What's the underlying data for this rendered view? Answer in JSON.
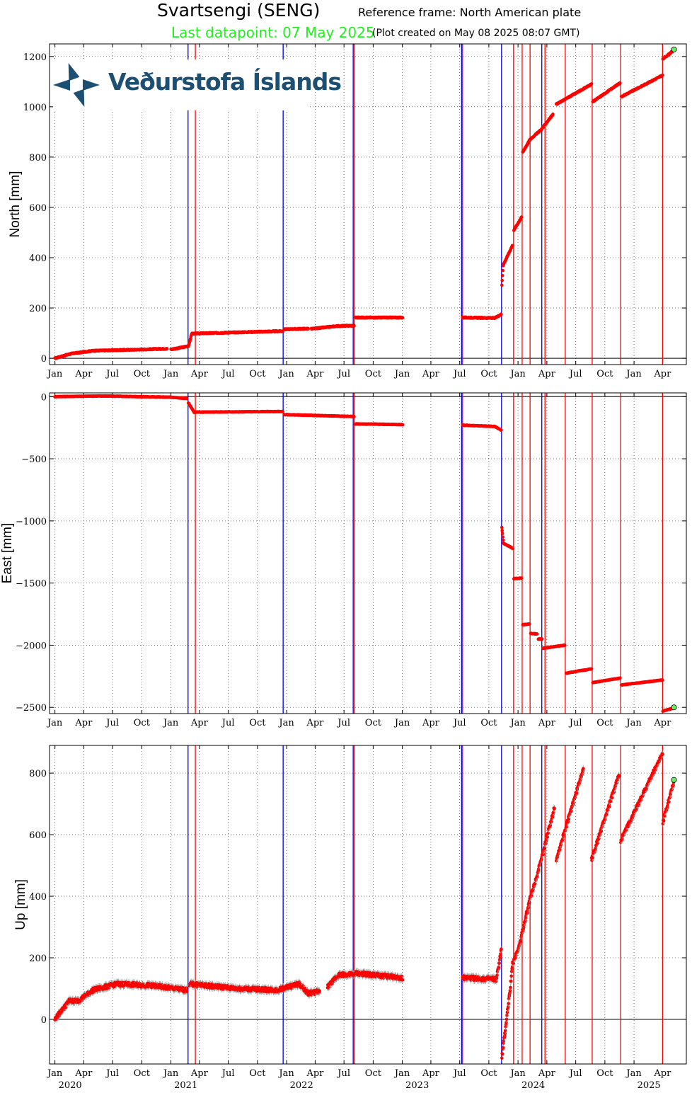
{
  "header": {
    "title": "Svartsengi (SENG)",
    "reference": "Reference frame: North American plate",
    "last_datapoint": "Last datapoint: 07 May 2025",
    "created": "(Plot created on May 08 2025 08:07 GMT)"
  },
  "logo": {
    "text": "Veðurstofa Íslands"
  },
  "colors": {
    "data": "#ff0000",
    "event_blue": "#0000dd",
    "event_red": "#ff0000",
    "last_point": "#66ee66"
  },
  "chart_data": [
    {
      "type": "scatter",
      "ylabel": "North [mm]",
      "xlim": [
        "2019-12-15",
        "2025-06-15"
      ],
      "ylim": [
        -25,
        1250
      ],
      "y_ticks": [
        0,
        200,
        400,
        600,
        800,
        1000,
        1200
      ],
      "y_tick_labels": [
        "0",
        "200",
        "400",
        "600",
        "800",
        "1000",
        "1200"
      ],
      "segments": [
        [
          [
            "2020-01-01",
            0
          ],
          [
            "2020-02-20",
            18
          ],
          [
            "2020-05-01",
            30
          ],
          [
            "2020-10-01",
            35
          ],
          [
            "2020-12-20",
            38
          ]
        ],
        [
          [
            "2021-01-01",
            35
          ],
          [
            "2021-02-25",
            48
          ],
          [
            "2021-03-08",
            98
          ],
          [
            "2021-12-20",
            108
          ]
        ],
        [
          [
            "2021-12-24",
            115
          ],
          [
            "2022-03-10",
            118
          ]
        ],
        [
          [
            "2022-03-20",
            117
          ],
          [
            "2022-06-10",
            128
          ],
          [
            "2022-08-02",
            130
          ]
        ],
        [
          [
            "2022-08-05",
            162
          ],
          [
            "2023-01-02",
            162
          ]
        ],
        [
          [
            "2023-07-10",
            162
          ],
          [
            "2023-10-20",
            160
          ],
          [
            "2023-11-09",
            175
          ]
        ],
        [
          [
            "2023-11-11",
            290
          ],
          [
            "2023-11-15",
            370
          ],
          [
            "2023-12-15",
            450
          ]
        ],
        [
          [
            "2023-12-19",
            510
          ],
          [
            "2024-01-12",
            560
          ]
        ],
        [
          [
            "2024-01-16",
            820
          ],
          [
            "2024-02-08",
            870
          ],
          [
            "2024-03-15",
            910
          ],
          [
            "2024-04-20",
            970
          ]
        ],
        [
          [
            "2024-05-01",
            1010
          ],
          [
            "2024-08-20",
            1090
          ]
        ],
        [
          [
            "2024-08-24",
            1020
          ],
          [
            "2024-11-18",
            1095
          ]
        ],
        [
          [
            "2024-11-22",
            1040
          ],
          [
            "2025-04-01",
            1125
          ]
        ],
        [
          [
            "2025-04-02",
            1190
          ],
          [
            "2025-05-07",
            1225
          ]
        ]
      ],
      "last_point": [
        "2025-05-07",
        1228
      ]
    },
    {
      "type": "scatter",
      "ylabel": "East [mm]",
      "xlim": [
        "2019-12-15",
        "2025-06-15"
      ],
      "ylim": [
        -2550,
        30
      ],
      "y_ticks": [
        0,
        -500,
        -1000,
        -1500,
        -2000,
        -2500
      ],
      "y_tick_labels": [
        "0",
        "−500",
        "−1000",
        "−1500",
        "−2000",
        "−2500"
      ],
      "segments": [
        [
          [
            "2020-01-01",
            0
          ],
          [
            "2020-06-01",
            5
          ],
          [
            "2021-01-01",
            -5
          ],
          [
            "2021-02-20",
            -15
          ]
        ],
        [
          [
            "2021-02-25",
            -50
          ],
          [
            "2021-03-15",
            -125
          ],
          [
            "2021-12-20",
            -120
          ]
        ],
        [
          [
            "2021-12-24",
            -145
          ],
          [
            "2022-08-02",
            -160
          ]
        ],
        [
          [
            "2022-08-05",
            -220
          ],
          [
            "2023-01-02",
            -225
          ]
        ],
        [
          [
            "2023-07-10",
            -230
          ],
          [
            "2023-10-20",
            -240
          ],
          [
            "2023-11-09",
            -270
          ]
        ],
        [
          [
            "2023-11-11",
            -1050
          ],
          [
            "2023-11-16",
            -1180
          ],
          [
            "2023-12-15",
            -1220
          ]
        ],
        [
          [
            "2023-12-19",
            -1465
          ],
          [
            "2024-01-12",
            -1460
          ]
        ],
        [
          [
            "2024-01-16",
            -1835
          ],
          [
            "2024-02-06",
            -1830
          ]
        ],
        [
          [
            "2024-02-10",
            -1905
          ],
          [
            "2024-03-01",
            -1910
          ]
        ],
        [
          [
            "2024-03-05",
            -1950
          ],
          [
            "2024-03-17",
            -1950
          ]
        ],
        [
          [
            "2024-03-19",
            -2025
          ],
          [
            "2024-05-28",
            -2000
          ]
        ],
        [
          [
            "2024-06-01",
            -2225
          ],
          [
            "2024-08-20",
            -2190
          ]
        ],
        [
          [
            "2024-08-24",
            -2300
          ],
          [
            "2024-11-18",
            -2265
          ]
        ],
        [
          [
            "2024-11-22",
            -2320
          ],
          [
            "2025-04-01",
            -2280
          ]
        ],
        [
          [
            "2025-04-02",
            -2530
          ],
          [
            "2025-05-07",
            -2505
          ]
        ]
      ],
      "last_point": [
        "2025-05-07",
        -2500
      ]
    },
    {
      "type": "scatter",
      "ylabel": "Up [mm]",
      "xlim": [
        "2019-12-15",
        "2025-06-15"
      ],
      "ylim": [
        -145,
        890
      ],
      "y_ticks": [
        0,
        200,
        400,
        600,
        800
      ],
      "y_tick_labels": [
        "0",
        "200",
        "400",
        "600",
        "800"
      ],
      "segments": [
        [
          [
            "2020-01-01",
            0
          ],
          [
            "2020-02-15",
            60
          ],
          [
            "2020-03-15",
            60
          ],
          [
            "2020-05-01",
            95
          ],
          [
            "2020-07-15",
            115
          ],
          [
            "2020-11-01",
            110
          ],
          [
            "2021-02-20",
            95
          ]
        ],
        [
          [
            "2021-03-01",
            115
          ],
          [
            "2021-08-01",
            100
          ],
          [
            "2021-12-01",
            95
          ],
          [
            "2022-02-10",
            115
          ],
          [
            "2022-03-10",
            85
          ],
          [
            "2022-04-15",
            90
          ]
        ],
        [
          [
            "2022-05-10",
            105
          ],
          [
            "2022-06-15",
            145
          ],
          [
            "2022-08-02",
            145
          ]
        ],
        [
          [
            "2022-08-05",
            150
          ],
          [
            "2023-01-02",
            135
          ]
        ],
        [
          [
            "2023-07-10",
            135
          ],
          [
            "2023-10-25",
            130
          ],
          [
            "2023-11-09",
            225
          ]
        ],
        [
          [
            "2023-11-11",
            -125
          ],
          [
            "2023-11-20",
            -50
          ],
          [
            "2023-12-05",
            80
          ],
          [
            "2023-12-15",
            180
          ],
          [
            "2024-01-05",
            240
          ],
          [
            "2024-02-05",
            380
          ],
          [
            "2024-03-15",
            520
          ],
          [
            "2024-04-25",
            690
          ]
        ],
        [
          [
            "2024-05-01",
            520
          ],
          [
            "2024-07-25",
            815
          ]
        ],
        [
          [
            "2024-08-20",
            520
          ],
          [
            "2024-11-15",
            795
          ]
        ],
        [
          [
            "2024-11-20",
            580
          ],
          [
            "2025-04-01",
            865
          ]
        ],
        [
          [
            "2025-04-02",
            640
          ],
          [
            "2025-05-07",
            775
          ]
        ]
      ],
      "last_point": [
        "2025-05-07",
        778
      ]
    }
  ],
  "events": {
    "blue": [
      "2021-02-24",
      "2021-12-21",
      "2022-07-30",
      "2023-07-07",
      "2023-11-10",
      "2024-03-16"
    ],
    "red": [
      "2021-03-19",
      "2022-08-03",
      "2023-07-10",
      "2023-12-18",
      "2024-01-14",
      "2024-02-08",
      "2024-03-26",
      "2024-05-29",
      "2024-08-22",
      "2024-11-20",
      "2025-04-01"
    ]
  },
  "x_ticks": [
    {
      "date": "2020-01-01",
      "label": "Jan"
    },
    {
      "date": "2020-04-01",
      "label": "Apr"
    },
    {
      "date": "2020-07-01",
      "label": "Jul"
    },
    {
      "date": "2020-10-01",
      "label": "Oct"
    },
    {
      "date": "2021-01-01",
      "label": "Jan"
    },
    {
      "date": "2021-04-01",
      "label": "Apr"
    },
    {
      "date": "2021-07-01",
      "label": "Jul"
    },
    {
      "date": "2021-10-01",
      "label": "Oct"
    },
    {
      "date": "2022-01-01",
      "label": "Jan"
    },
    {
      "date": "2022-04-01",
      "label": "Apr"
    },
    {
      "date": "2022-07-01",
      "label": "Jul"
    },
    {
      "date": "2022-10-01",
      "label": "Oct"
    },
    {
      "date": "2023-01-01",
      "label": "Jan"
    },
    {
      "date": "2023-04-01",
      "label": "Apr"
    },
    {
      "date": "2023-07-01",
      "label": "Jul"
    },
    {
      "date": "2023-10-01",
      "label": "Oct"
    },
    {
      "date": "2024-01-01",
      "label": "Jan"
    },
    {
      "date": "2024-04-01",
      "label": "Apr"
    },
    {
      "date": "2024-07-01",
      "label": "Jul"
    },
    {
      "date": "2024-10-01",
      "label": "Oct"
    },
    {
      "date": "2025-01-01",
      "label": "Jan"
    },
    {
      "date": "2025-04-01",
      "label": "Apr"
    }
  ],
  "year_labels": [
    {
      "date": "2020-07-01",
      "label": "2020"
    },
    {
      "date": "2021-07-01",
      "label": "2021"
    },
    {
      "date": "2022-07-01",
      "label": "2022"
    },
    {
      "date": "2023-07-01",
      "label": "2023"
    },
    {
      "date": "2024-07-01",
      "label": "2024"
    },
    {
      "date": "2025-07-01",
      "label": "2025"
    }
  ]
}
